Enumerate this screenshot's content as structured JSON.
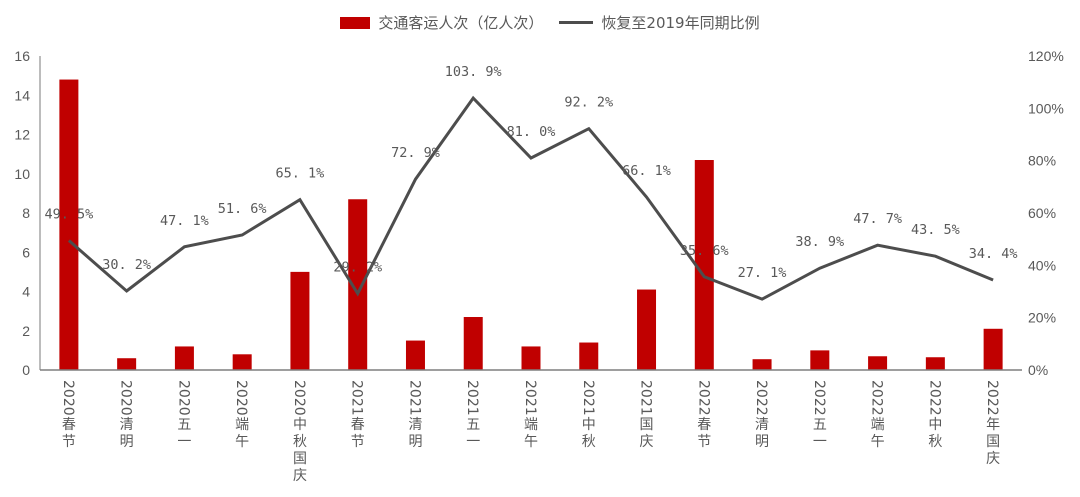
{
  "chart_data": {
    "type": "bar+line",
    "title": "",
    "legend": {
      "position": "top",
      "entries": [
        {
          "name": "交通客运人次（亿人次）",
          "type": "bar",
          "color": "#C00000"
        },
        {
          "name": "恢复至2019年同期比例",
          "type": "line",
          "color": "#4D4D4D"
        }
      ]
    },
    "categories": [
      "2020春节",
      "2020清明",
      "2020五一",
      "2020端午",
      "2020中秋国庆",
      "2021春节",
      "2021清明",
      "2021五一",
      "2021端午",
      "2021中秋",
      "2021国庆",
      "2022春节",
      "2022清明",
      "2022五一",
      "2022端午",
      "2022中秋",
      "2022年国庆"
    ],
    "series": [
      {
        "name": "交通客运人次（亿人次）",
        "axis": "left",
        "type": "bar",
        "values": [
          14.8,
          0.6,
          1.2,
          0.8,
          5.0,
          8.7,
          1.5,
          2.7,
          1.2,
          1.4,
          4.1,
          10.7,
          0.55,
          1.0,
          0.7,
          0.65,
          2.1
        ]
      },
      {
        "name": "恢复至2019年同期比例",
        "axis": "right",
        "type": "line",
        "values": [
          49.5,
          30.2,
          47.1,
          51.6,
          65.1,
          29.2,
          72.9,
          103.9,
          81.0,
          92.2,
          66.1,
          35.6,
          27.1,
          38.9,
          47.7,
          43.5,
          34.4
        ],
        "labels": [
          "49.5%",
          "30.2%",
          "47.1%",
          "51.6%",
          "65.1%",
          "29.2%",
          "72.9%",
          "103.9%",
          "81.0%",
          "92.2%",
          "66.1%",
          "35.6%",
          "27.1%",
          "38.9%",
          "47.7%",
          "43.5%",
          "34.4%"
        ]
      }
    ],
    "left_axis": {
      "ylim": [
        0,
        16
      ],
      "ticks": [
        "0",
        "2",
        "4",
        "6",
        "8",
        "10",
        "12",
        "14",
        "16"
      ]
    },
    "right_axis": {
      "ylim": [
        0,
        120
      ],
      "ticks": [
        "0%",
        "20%",
        "40%",
        "60%",
        "80%",
        "100%",
        "120%"
      ]
    },
    "grid": false,
    "xlabel": "",
    "ylabel": ""
  }
}
